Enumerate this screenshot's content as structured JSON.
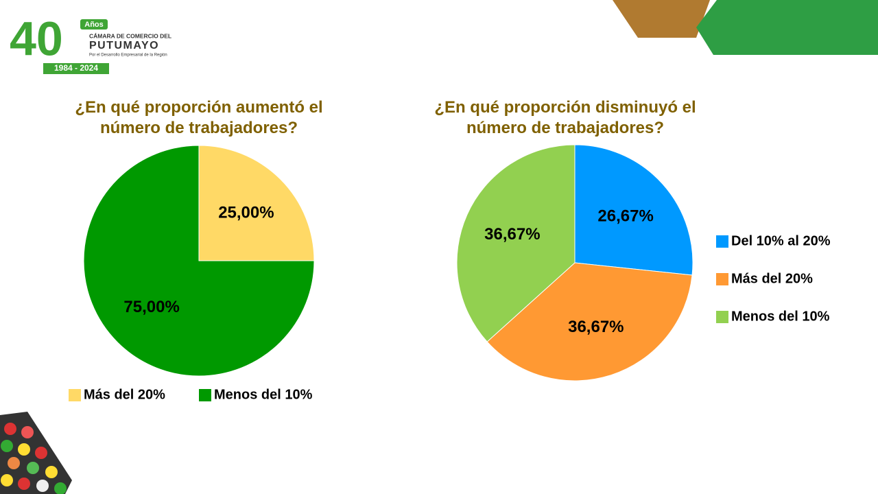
{
  "logo": {
    "anniversary": "40",
    "years": "Años",
    "line1": "CÁMARA DE COMERCIO DEL",
    "line2": "PUTUMAYO",
    "tagline": "Por el Desarrollo Empresarial de la Región",
    "period": "1984 - 2024"
  },
  "chart_data": [
    {
      "type": "pie",
      "title": "¿En qué proporción aumentó el número de trabajadores?",
      "categories": [
        "Más del 20%",
        "Menos del 10%"
      ],
      "values": [
        25,
        75
      ],
      "value_labels": [
        "25,00%",
        "75,00%"
      ],
      "colors": [
        "#FFD966",
        "#009900"
      ],
      "legend": "bottom"
    },
    {
      "type": "pie",
      "title": "¿En qué proporción disminuyó el número de trabajadores?",
      "categories": [
        "Del 10% al 20%",
        "Más del 20%",
        "Menos del 10%"
      ],
      "values": [
        26.67,
        36.67,
        36.67
      ],
      "value_labels": [
        "26,67%",
        "36,67%",
        "36,67%"
      ],
      "colors": [
        "#0099FF",
        "#FF9933",
        "#92D050"
      ],
      "legend": "right"
    }
  ]
}
